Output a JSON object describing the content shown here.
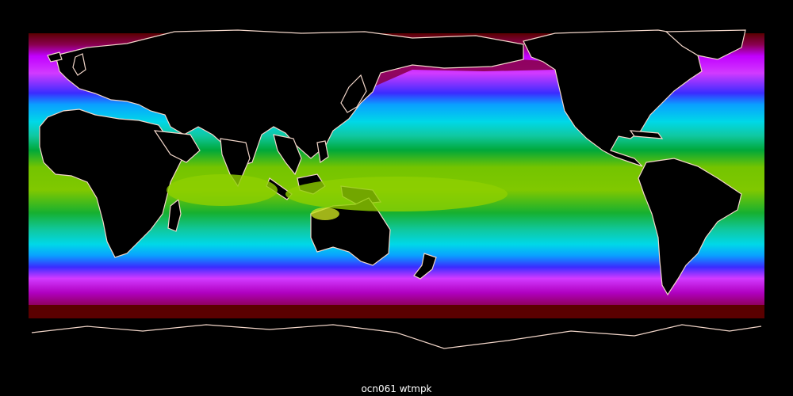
{
  "caption": "ocn061 wtmpk",
  "colors": {
    "background": "#000000",
    "land": "#000000",
    "coastline": "#f2d6c9",
    "sea_ice": "#5a0000",
    "temperature_palette": [
      "#5a0000",
      "#8a0050",
      "#b000c0",
      "#d23aff",
      "#9a4dff",
      "#3a2cff",
      "#0a5cff",
      "#0aa0ff",
      "#00d8e8",
      "#10c8a0",
      "#00a83a",
      "#16b030",
      "#74c400",
      "#98d400",
      "#c8e020"
    ]
  }
}
